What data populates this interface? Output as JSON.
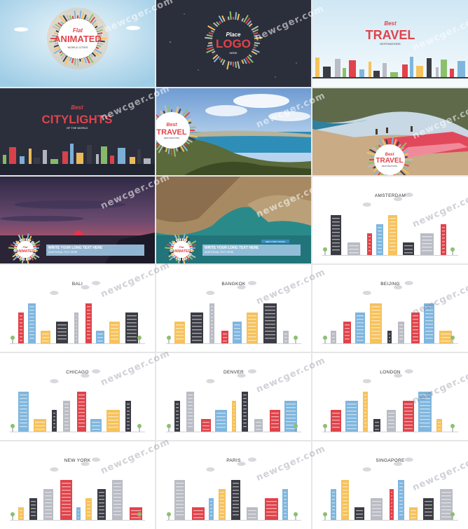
{
  "watermark": "newcger.com",
  "tiles": [
    {
      "kind": "intro",
      "line1": "Flat",
      "line2": "ANIMATED",
      "line3": "WORLD CITIES"
    },
    {
      "kind": "logo",
      "line1": "Place",
      "line2": "LOGO",
      "line3": "HERE"
    },
    {
      "kind": "travel",
      "line1": "Best",
      "line2": "TRAVEL",
      "line3": "DESTINATIONS"
    },
    {
      "kind": "citylights",
      "line1": "Best",
      "line2": "CITYLIGHTS",
      "line3": "OF THE WORLD"
    },
    {
      "kind": "photo-coast",
      "line1": "Best",
      "line2": "TRAVEL",
      "line3": "DESTINATIONS"
    },
    {
      "kind": "photo-beach",
      "line1": "Best",
      "line2": "TRAVEL",
      "line3": "DESTINATIONS"
    },
    {
      "kind": "sunset",
      "badge1": "Flat",
      "badge2": "ANIMATED",
      "bar_title": "WRITE YOUR LONG TEXT HERE",
      "bar_sub": "ADDITIONAL TEXT HERE"
    },
    {
      "kind": "cliffs",
      "badge1": "Flat",
      "badge2": "ANIMATED",
      "bar_title": "WRITE YOUR LONG TEXT HERE",
      "bar_sub": "ADDITIONAL TEXT HERE",
      "tag": "NEW YORK TRAVEL"
    },
    {
      "kind": "city",
      "city": "AMSTERDAM"
    },
    {
      "kind": "city",
      "city": "BALI"
    },
    {
      "kind": "city",
      "city": "BANGKOK"
    },
    {
      "kind": "city",
      "city": "BEIJING"
    },
    {
      "kind": "city",
      "city": "CHICAGO"
    },
    {
      "kind": "city",
      "city": "DENVER"
    },
    {
      "kind": "city",
      "city": "LONDON"
    },
    {
      "kind": "city",
      "city": "NEW YORK"
    },
    {
      "kind": "city",
      "city": "PARIS"
    },
    {
      "kind": "city",
      "city": "SINGAPORE"
    }
  ],
  "colors": {
    "red": "#e0434b",
    "blue": "#7fb6de",
    "yellow": "#f6c25c",
    "dark": "#3b3c44",
    "grey": "#b9bcc4",
    "green": "#8cc06d",
    "navy": "#2b2e3b"
  }
}
